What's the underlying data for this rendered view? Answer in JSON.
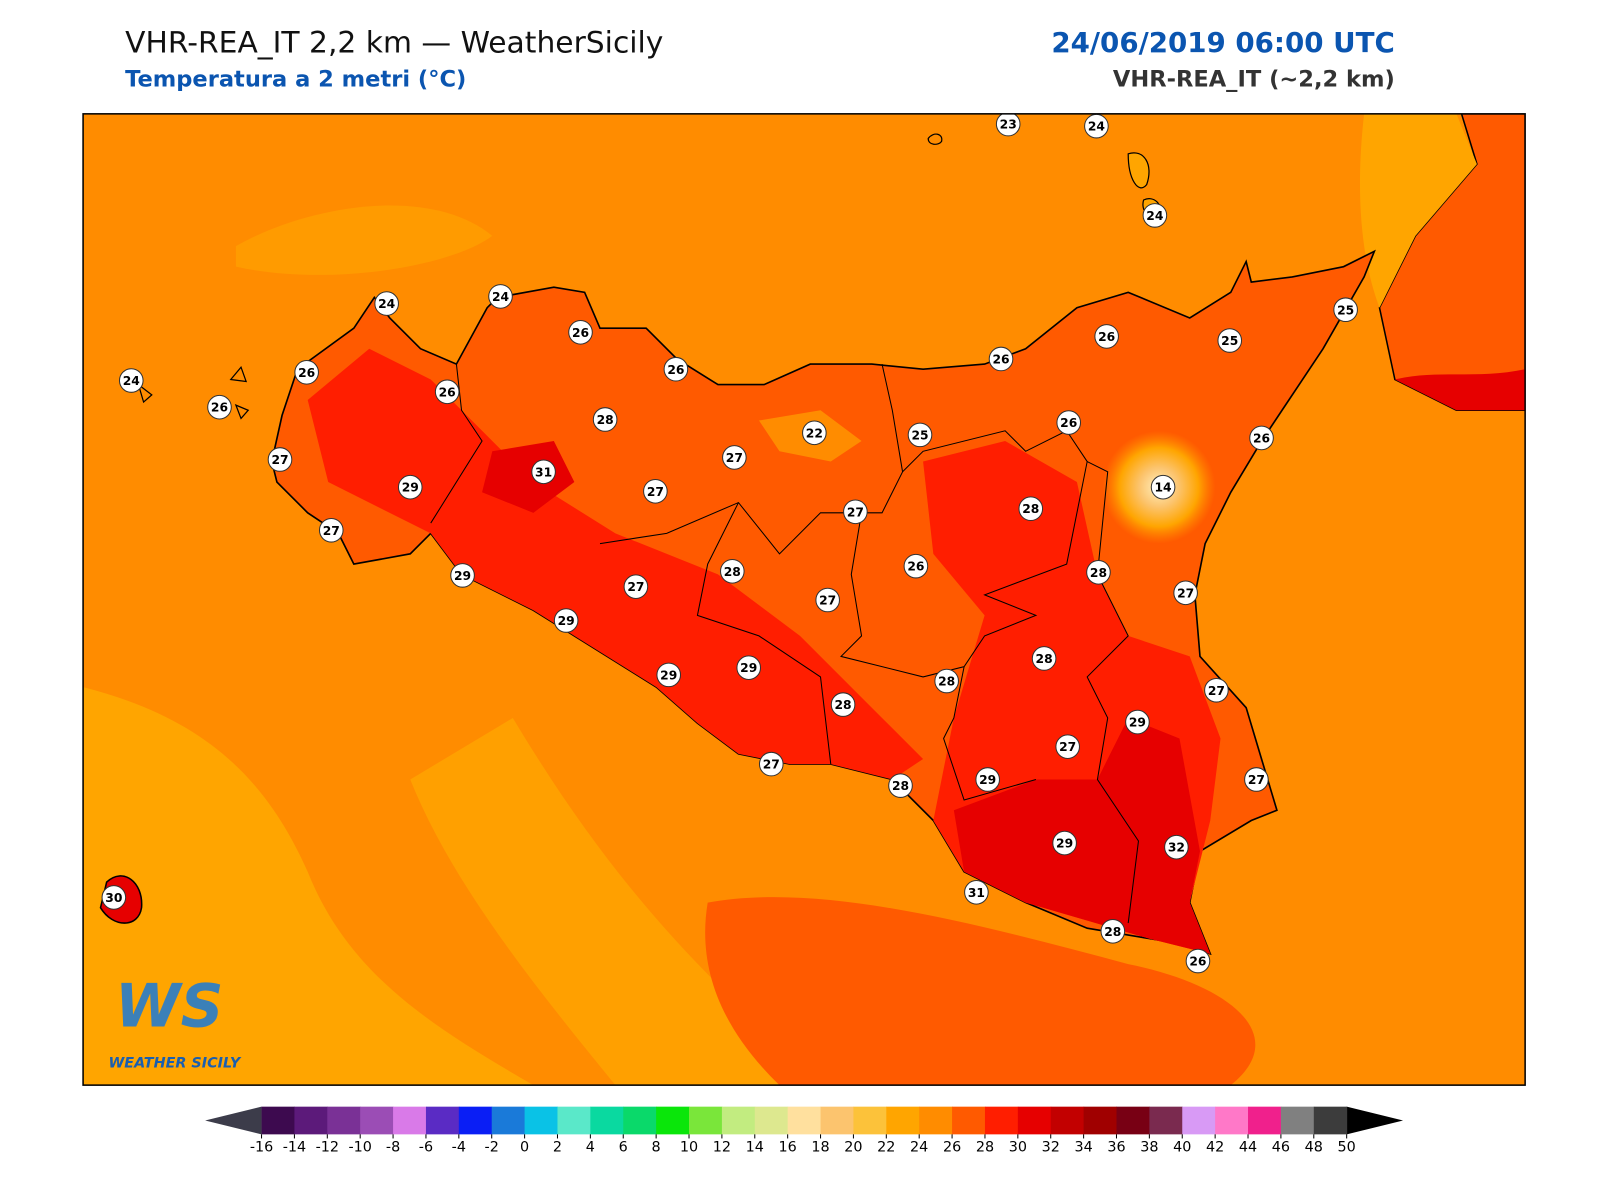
{
  "header": {
    "title": "VHR-REA_IT 2,2 km — WeatherSicily",
    "subtitle": "Temperatura a 2 metri (°C)",
    "datetime": "24/06/2019 06:00 UTC",
    "model": "VHR-REA_IT (~2,2 km)"
  },
  "logo": {
    "mark": "WS",
    "name": "WEATHER SICILY"
  },
  "station_temperatures": [
    23,
    24,
    24,
    24,
    24,
    26,
    26,
    25,
    26,
    25,
    26,
    24,
    26,
    26,
    26,
    28,
    22,
    25,
    26,
    26,
    27,
    31,
    27,
    29,
    27,
    14,
    27,
    28,
    27,
    26,
    28,
    29,
    27,
    27,
    28,
    27,
    29,
    28,
    29,
    29,
    28,
    28,
    27,
    29,
    27,
    27,
    29,
    28,
    27,
    29,
    32,
    31,
    30,
    28,
    26
  ],
  "colorbar": {
    "ticks": [
      -16,
      -14,
      -12,
      -10,
      -8,
      -6,
      -4,
      -2,
      0,
      2,
      4,
      6,
      8,
      10,
      12,
      14,
      16,
      18,
      20,
      22,
      24,
      26,
      28,
      30,
      32,
      34,
      36,
      38,
      40,
      42,
      44,
      46,
      48,
      50
    ],
    "colors": [
      "#3d0a4f",
      "#5c1a7a",
      "#7a3196",
      "#9b4db5",
      "#d97ae8",
      "#5a2bc4",
      "#0a1ef5",
      "#1a7ad9",
      "#0ac2e6",
      "#5ae8c9",
      "#0ad9a0",
      "#0ad96a",
      "#0ae60a",
      "#7ae63a",
      "#c2ec80",
      "#dde88f",
      "#ffe09e",
      "#fcc46e",
      "#fcc23a",
      "#ffa500",
      "#ff8c00",
      "#ff5a00",
      "#ff1e00",
      "#e60000",
      "#c20000",
      "#a00000",
      "#780014",
      "#7a2a4f",
      "#d89af5",
      "#ff78c8",
      "#f0208c",
      "#808080",
      "#3c3c3c"
    ],
    "under_color": "#3c3c4a",
    "over_color": "#000000"
  }
}
